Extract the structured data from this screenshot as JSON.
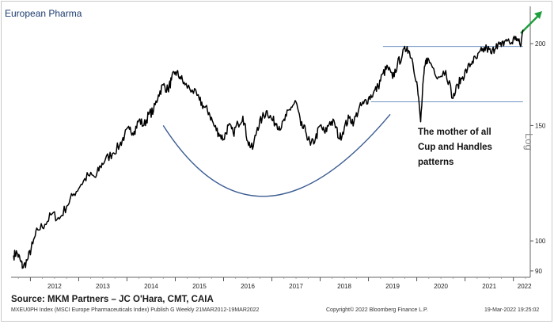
{
  "colors": {
    "price_line": "#000000",
    "cup_curve": "#3b5c92",
    "resistance_line": "#6f93c2",
    "arrow": "#1f9e3e",
    "title": "#1a3a6e"
  },
  "chart_data": {
    "type": "line",
    "title": "European Pharma",
    "yscale": "log",
    "ylabel": "Log",
    "ylim": [
      88,
      228
    ],
    "yticks": [
      90,
      100,
      150,
      200
    ],
    "xlim": [
      2011.6,
      2022.35
    ],
    "xtick_labels": [
      "2012",
      "2013",
      "2014",
      "2015",
      "2016",
      "2017",
      "2018",
      "2019",
      "2020",
      "2021",
      "2022"
    ],
    "grid": false,
    "series": [
      {
        "x": [
          2011.65,
          2011.72,
          2011.8,
          2011.85,
          2011.95,
          2012.05,
          2012.15,
          2012.3,
          2012.45,
          2012.6,
          2012.75,
          2012.9,
          2013.05,
          2013.2,
          2013.35,
          2013.45,
          2013.55,
          2013.7,
          2013.85,
          2013.95,
          2014.05,
          2014.15,
          2014.25,
          2014.35,
          2014.45,
          2014.55,
          2014.65,
          2014.75,
          2014.85,
          2014.92,
          2015.0,
          2015.1,
          2015.2,
          2015.35,
          2015.5,
          2015.6,
          2015.7,
          2015.8,
          2015.9,
          2016.0,
          2016.1,
          2016.2,
          2016.3,
          2016.4,
          2016.5,
          2016.6,
          2016.7,
          2016.8,
          2016.9,
          2017.0,
          2017.1,
          2017.2,
          2017.3,
          2017.4,
          2017.5,
          2017.6,
          2017.7,
          2017.8,
          2017.9,
          2018.0,
          2018.1,
          2018.2,
          2018.3,
          2018.4,
          2018.5,
          2018.6,
          2018.7,
          2018.8,
          2018.9,
          2019.0,
          2019.1,
          2019.2,
          2019.3,
          2019.4,
          2019.5,
          2019.6,
          2019.7,
          2019.8,
          2019.9,
          2020.0,
          2020.08,
          2020.15,
          2020.2,
          2020.3,
          2020.45,
          2020.6,
          2020.75,
          2020.85,
          2020.95,
          2021.05,
          2021.15,
          2021.25,
          2021.35,
          2021.45,
          2021.55,
          2021.65,
          2021.75,
          2021.85,
          2021.95,
          2022.05,
          2022.15,
          2022.2
        ],
        "y": [
          95,
          96,
          93,
          91,
          94,
          99,
          104,
          106,
          110,
          108,
          113,
          118,
          122,
          126,
          125,
          130,
          133,
          136,
          140,
          145,
          148,
          147,
          153,
          150,
          156,
          158,
          167,
          173,
          170,
          176,
          181,
          178,
          173,
          170,
          164,
          160,
          157,
          150,
          146,
          143,
          150,
          146,
          151,
          155,
          142,
          138,
          149,
          154,
          158,
          153,
          151,
          149,
          155,
          160,
          163,
          150,
          147,
          140,
          143,
          150,
          146,
          152,
          151,
          143,
          149,
          154,
          152,
          159,
          162,
          165,
          168,
          172,
          180,
          184,
          177,
          186,
          192,
          198,
          190,
          175,
          152,
          180,
          190,
          186,
          178,
          182,
          165,
          173,
          178,
          183,
          188,
          190,
          195,
          197,
          193,
          200,
          198,
          203,
          200,
          205,
          198,
          210
        ]
      }
    ],
    "annotation": "The mother of all Cup and Handles patterns",
    "resistance_levels": [
      {
        "value": 198,
        "x_start": 2019.3,
        "x_end": 2022.2
      },
      {
        "value": 163,
        "x_start": 2019.05,
        "x_end": 2022.2
      }
    ],
    "cup": {
      "x_start": 2014.75,
      "x_low": 2016.9,
      "x_end": 2019.45,
      "y_start": 150,
      "y_low": 117,
      "y_end": 156
    }
  },
  "footer": {
    "source": "Source: MKM Partners – JC O'Hara, CMT, CAIA",
    "index": "MXEU0PH Index (MSCI Europe Pharmaceuticals Index) Publish G  Weekly 21MAR2012-19MAR2022",
    "copyright": "Copyright© 2022 Bloomberg Finance L.P.",
    "timestamp": "19-Mar-2022 19:25:02"
  }
}
